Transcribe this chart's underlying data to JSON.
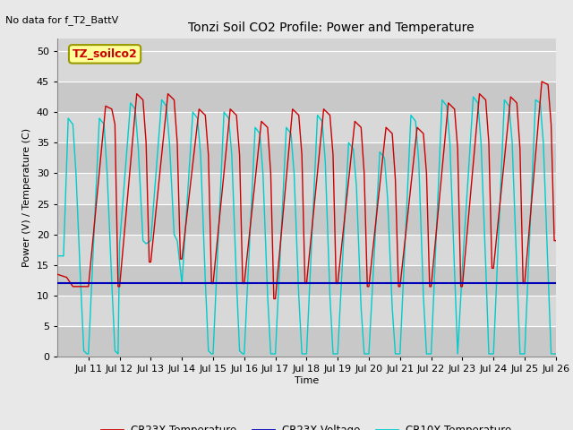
{
  "title": "Tonzi Soil CO2 Profile: Power and Temperature",
  "no_data_label": "No data for f_T2_BattV",
  "ylabel": "Power (V) / Temperature (C)",
  "xlabel": "Time",
  "xlim_days": [
    10,
    26
  ],
  "ylim": [
    0,
    52
  ],
  "yticks": [
    0,
    5,
    10,
    15,
    20,
    25,
    30,
    35,
    40,
    45,
    50
  ],
  "xtick_labels": [
    "Jul 11",
    "Jul 12",
    "Jul 13",
    "Jul 14",
    "Jul 15",
    "Jul 16",
    "Jul 17",
    "Jul 18",
    "Jul 19",
    "Jul 20",
    "Jul 21",
    "Jul 22",
    "Jul 23",
    "Jul 24",
    "Jul 25",
    "Jul 26"
  ],
  "xtick_positions": [
    11,
    12,
    13,
    14,
    15,
    16,
    17,
    18,
    19,
    20,
    21,
    22,
    23,
    24,
    25,
    26
  ],
  "fig_bg_color": "#e8e8e8",
  "plot_bg_color": "#d3d3d3",
  "grid_color": "#ffffff",
  "cr23x_temp_color": "#cc0000",
  "cr23x_volt_color": "#0000bb",
  "cr10x_temp_color": "#00cccc",
  "legend_box_facecolor": "#ffff99",
  "legend_box_edgecolor": "#999900",
  "legend_box_label": "TZ_soilco2",
  "voltage_value": 12.0,
  "cr23x_temp_data": [
    [
      10.0,
      13.5
    ],
    [
      10.3,
      13.0
    ],
    [
      10.5,
      11.5
    ],
    [
      11.0,
      11.5
    ],
    [
      11.55,
      41.0
    ],
    [
      11.75,
      40.5
    ],
    [
      11.85,
      38.0
    ],
    [
      11.95,
      11.5
    ],
    [
      12.0,
      11.5
    ],
    [
      12.55,
      43.0
    ],
    [
      12.75,
      42.0
    ],
    [
      12.85,
      35.0
    ],
    [
      12.95,
      15.5
    ],
    [
      13.0,
      15.5
    ],
    [
      13.55,
      43.0
    ],
    [
      13.75,
      42.0
    ],
    [
      13.85,
      35.0
    ],
    [
      13.95,
      16.0
    ],
    [
      14.0,
      16.0
    ],
    [
      14.55,
      40.5
    ],
    [
      14.75,
      39.5
    ],
    [
      14.85,
      33.0
    ],
    [
      14.95,
      12.0
    ],
    [
      15.0,
      12.0
    ],
    [
      15.55,
      40.5
    ],
    [
      15.75,
      39.5
    ],
    [
      15.85,
      33.0
    ],
    [
      15.95,
      12.0
    ],
    [
      16.0,
      12.0
    ],
    [
      16.55,
      38.5
    ],
    [
      16.75,
      37.5
    ],
    [
      16.85,
      30.0
    ],
    [
      16.95,
      9.5
    ],
    [
      17.0,
      9.5
    ],
    [
      17.55,
      40.5
    ],
    [
      17.75,
      39.5
    ],
    [
      17.85,
      33.0
    ],
    [
      17.95,
      12.0
    ],
    [
      18.0,
      12.0
    ],
    [
      18.55,
      40.5
    ],
    [
      18.75,
      39.5
    ],
    [
      18.85,
      33.0
    ],
    [
      18.95,
      12.0
    ],
    [
      19.0,
      12.0
    ],
    [
      19.55,
      38.5
    ],
    [
      19.75,
      37.5
    ],
    [
      19.85,
      30.0
    ],
    [
      19.95,
      11.5
    ],
    [
      20.0,
      11.5
    ],
    [
      20.55,
      37.5
    ],
    [
      20.75,
      36.5
    ],
    [
      20.85,
      29.0
    ],
    [
      20.95,
      11.5
    ],
    [
      21.0,
      11.5
    ],
    [
      21.55,
      37.5
    ],
    [
      21.75,
      36.5
    ],
    [
      21.85,
      30.0
    ],
    [
      21.95,
      11.5
    ],
    [
      22.0,
      11.5
    ],
    [
      22.55,
      41.5
    ],
    [
      22.75,
      40.5
    ],
    [
      22.85,
      34.0
    ],
    [
      22.95,
      11.5
    ],
    [
      23.0,
      11.5
    ],
    [
      23.55,
      43.0
    ],
    [
      23.75,
      42.0
    ],
    [
      23.85,
      35.0
    ],
    [
      23.95,
      14.5
    ],
    [
      24.0,
      14.5
    ],
    [
      24.55,
      42.5
    ],
    [
      24.75,
      41.5
    ],
    [
      24.85,
      34.0
    ],
    [
      24.95,
      12.0
    ],
    [
      25.0,
      12.0
    ],
    [
      25.55,
      45.0
    ],
    [
      25.75,
      44.5
    ],
    [
      25.85,
      38.0
    ],
    [
      25.95,
      19.0
    ],
    [
      26.0,
      19.0
    ]
  ],
  "cr10x_temp_data": [
    [
      10.0,
      16.5
    ],
    [
      10.2,
      16.5
    ],
    [
      10.35,
      39.0
    ],
    [
      10.5,
      38.0
    ],
    [
      10.6,
      30.0
    ],
    [
      10.75,
      12.0
    ],
    [
      10.85,
      1.0
    ],
    [
      10.95,
      0.5
    ],
    [
      11.0,
      0.5
    ],
    [
      11.35,
      39.0
    ],
    [
      11.5,
      38.0
    ],
    [
      11.6,
      30.0
    ],
    [
      11.75,
      12.0
    ],
    [
      11.85,
      1.0
    ],
    [
      11.95,
      0.5
    ],
    [
      12.0,
      18.5
    ],
    [
      12.35,
      41.5
    ],
    [
      12.5,
      40.5
    ],
    [
      12.6,
      34.0
    ],
    [
      12.75,
      19.0
    ],
    [
      12.85,
      18.5
    ],
    [
      13.0,
      19.0
    ],
    [
      13.35,
      42.0
    ],
    [
      13.5,
      41.0
    ],
    [
      13.6,
      35.0
    ],
    [
      13.75,
      20.0
    ],
    [
      13.85,
      19.0
    ],
    [
      14.0,
      12.0
    ],
    [
      14.35,
      40.0
    ],
    [
      14.5,
      39.0
    ],
    [
      14.6,
      33.0
    ],
    [
      14.75,
      12.5
    ],
    [
      14.85,
      1.0
    ],
    [
      14.95,
      0.5
    ],
    [
      15.0,
      0.5
    ],
    [
      15.35,
      40.0
    ],
    [
      15.5,
      39.0
    ],
    [
      15.6,
      33.0
    ],
    [
      15.75,
      12.5
    ],
    [
      15.85,
      1.0
    ],
    [
      15.95,
      0.5
    ],
    [
      16.0,
      0.5
    ],
    [
      16.35,
      37.5
    ],
    [
      16.5,
      36.5
    ],
    [
      16.6,
      30.0
    ],
    [
      16.75,
      10.0
    ],
    [
      16.85,
      0.5
    ],
    [
      17.0,
      0.5
    ],
    [
      17.35,
      37.5
    ],
    [
      17.5,
      36.5
    ],
    [
      17.6,
      30.0
    ],
    [
      17.75,
      10.0
    ],
    [
      17.85,
      0.5
    ],
    [
      18.0,
      0.5
    ],
    [
      18.35,
      39.5
    ],
    [
      18.5,
      38.5
    ],
    [
      18.6,
      32.0
    ],
    [
      18.75,
      10.0
    ],
    [
      18.85,
      0.5
    ],
    [
      19.0,
      0.5
    ],
    [
      19.35,
      35.0
    ],
    [
      19.5,
      34.0
    ],
    [
      19.6,
      28.0
    ],
    [
      19.75,
      8.0
    ],
    [
      19.85,
      0.5
    ],
    [
      20.0,
      0.5
    ],
    [
      20.35,
      33.5
    ],
    [
      20.5,
      32.5
    ],
    [
      20.6,
      26.0
    ],
    [
      20.75,
      8.0
    ],
    [
      20.85,
      0.5
    ],
    [
      21.0,
      0.5
    ],
    [
      21.35,
      39.5
    ],
    [
      21.5,
      38.5
    ],
    [
      21.6,
      32.0
    ],
    [
      21.75,
      10.0
    ],
    [
      21.85,
      0.5
    ],
    [
      22.0,
      0.5
    ],
    [
      22.35,
      42.0
    ],
    [
      22.5,
      41.0
    ],
    [
      22.6,
      35.0
    ],
    [
      22.75,
      14.0
    ],
    [
      22.85,
      0.5
    ],
    [
      23.0,
      14.5
    ],
    [
      23.35,
      42.5
    ],
    [
      23.5,
      41.5
    ],
    [
      23.6,
      35.0
    ],
    [
      23.75,
      15.0
    ],
    [
      23.85,
      0.5
    ],
    [
      24.0,
      0.5
    ],
    [
      24.35,
      42.0
    ],
    [
      24.5,
      41.0
    ],
    [
      24.6,
      35.0
    ],
    [
      24.75,
      14.0
    ],
    [
      24.85,
      0.5
    ],
    [
      25.0,
      0.5
    ],
    [
      25.35,
      42.0
    ],
    [
      25.5,
      41.5
    ],
    [
      25.6,
      35.0
    ],
    [
      25.75,
      14.0
    ],
    [
      25.85,
      0.5
    ],
    [
      26.0,
      0.5
    ]
  ]
}
